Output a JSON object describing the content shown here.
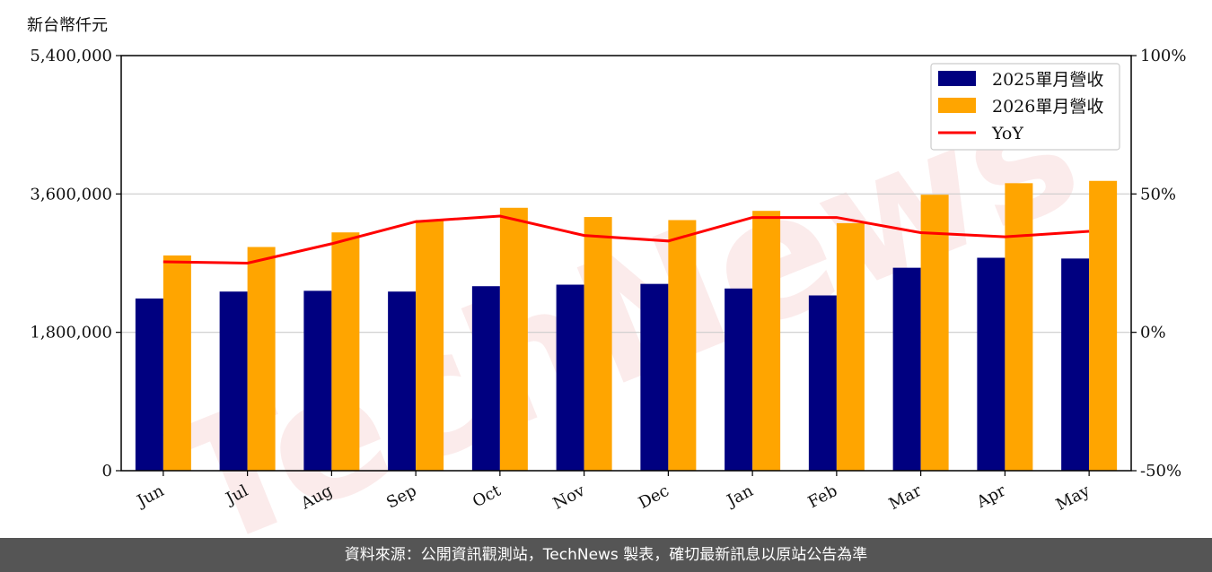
{
  "unit_label": "新台幣仟元",
  "footer_text": "資料來源：公開資訊觀測站，TechNews 製表，確切最新訊息以原站公告為準",
  "watermark_text": "TechNews",
  "colors": {
    "bar2025": "#000080",
    "bar2026": "#FFA500",
    "yoy": "#FF0000",
    "footer_bg": "#555555"
  },
  "chart_data": {
    "type": "bar",
    "categories": [
      "Jun",
      "Jul",
      "Aug",
      "Sep",
      "Oct",
      "Nov",
      "Dec",
      "Jan",
      "Feb",
      "Mar",
      "Apr",
      "May"
    ],
    "series": [
      {
        "name": "2025單月營收",
        "values": [
          2240000,
          2330000,
          2340000,
          2330000,
          2400000,
          2420000,
          2430000,
          2370000,
          2280000,
          2640000,
          2770000,
          2760000
        ]
      },
      {
        "name": "2026單月營收",
        "values": [
          2800000,
          2910000,
          3100000,
          3260000,
          3420000,
          3300000,
          3260000,
          3380000,
          3220000,
          3590000,
          3740000,
          3770000
        ]
      },
      {
        "name": "YoY",
        "type": "line",
        "axis": "right",
        "values": [
          25.5,
          25,
          32,
          40,
          42,
          35,
          33,
          41.5,
          41.5,
          36,
          34.5,
          36.5
        ]
      }
    ],
    "y_left": {
      "ylim": [
        0,
        5400000
      ],
      "ticks": [
        "0",
        "1,800,000",
        "3,600,000",
        "5,400,000"
      ],
      "tick_values": [
        0,
        1800000,
        3600000,
        5400000
      ]
    },
    "y_right": {
      "ylim": [
        -50,
        100
      ],
      "ticks": [
        "-50%",
        "0%",
        "50%",
        "100%"
      ],
      "tick_values": [
        -50,
        0,
        50,
        100
      ]
    },
    "grid": "horizontal",
    "legend": "top-right"
  }
}
